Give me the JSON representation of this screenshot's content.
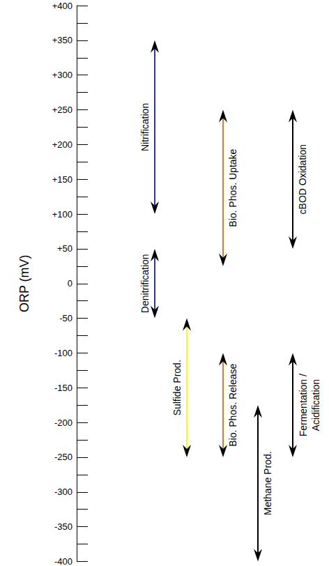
{
  "chart_data": {
    "type": "range",
    "y_label": "ORP (mV)",
    "ylim": [
      -400,
      400
    ],
    "yticks": [
      {
        "value": 400,
        "label": "+400"
      },
      {
        "value": 350,
        "label": "+350"
      },
      {
        "value": 300,
        "label": "+300"
      },
      {
        "value": 250,
        "label": "+250"
      },
      {
        "value": 200,
        "label": "+200"
      },
      {
        "value": 150,
        "label": "+150"
      },
      {
        "value": 100,
        "label": "+100"
      },
      {
        "value": 50,
        "label": "+50"
      },
      0,
      -50,
      -100,
      -150,
      -200,
      -250,
      -300,
      -350,
      -400
    ],
    "grid": false,
    "series": [
      {
        "name": "Nitrification",
        "color": "#3030c0",
        "values": [
          100,
          350
        ]
      },
      {
        "name": "Denitrification",
        "color": "#3030c0",
        "values": [
          -50,
          50
        ]
      },
      {
        "name": "Bio. Phos. Uptake",
        "color": "#e87722",
        "values": [
          25,
          250
        ]
      },
      {
        "name": "cBOD Oxidation",
        "color": "#000000",
        "values": [
          50,
          250
        ]
      },
      {
        "name": "Sulfide Prod.",
        "color": "#ffff00",
        "values": [
          -250,
          -50
        ]
      },
      {
        "name": "Bio. Phos. Release",
        "color": "#e87722",
        "values": [
          -250,
          -100
        ]
      },
      {
        "name": "Methane Prod.",
        "color": "#000000",
        "values": [
          -400,
          -175
        ]
      },
      {
        "name": "Fermentation / Acidification",
        "color": "#000000",
        "values": [
          -250,
          -100
        ]
      }
    ]
  }
}
